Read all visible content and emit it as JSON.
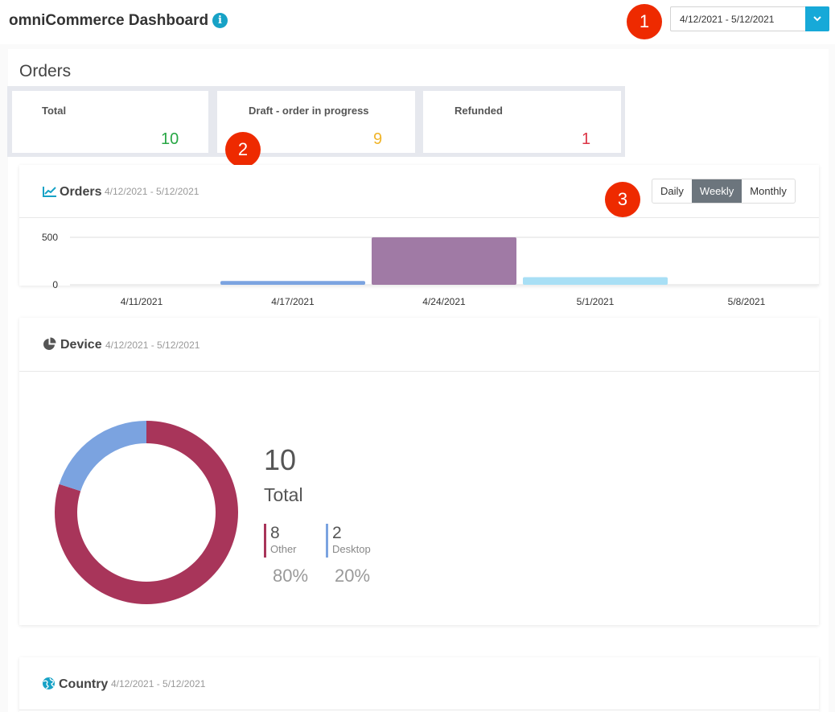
{
  "header": {
    "title": "omniCommerce Dashboard",
    "info_icon": "info-icon",
    "date_range": "4/12/2021 - 5/12/2021",
    "dropdown_icon": "chevron-down-icon"
  },
  "callouts": [
    "1",
    "2",
    "3"
  ],
  "orders": {
    "heading": "Orders",
    "stats": [
      {
        "label": "Total",
        "value": "10",
        "color": "#28a745"
      },
      {
        "label": "Draft - order in progress",
        "value": "9",
        "color": "#f0b429"
      },
      {
        "label": "Refunded",
        "value": "1",
        "color": "#dc3545"
      }
    ]
  },
  "orders_panel": {
    "title": "Orders",
    "date": "4/12/2021 - 5/12/2021",
    "icon": "line-chart-icon",
    "granularity": {
      "options": [
        "Daily",
        "Weekly",
        "Monthly"
      ],
      "selected": "Weekly"
    }
  },
  "chart_data": {
    "type": "bar",
    "categories": [
      "4/11/2021",
      "4/17/2021",
      "4/24/2021",
      "5/1/2021",
      "5/8/2021"
    ],
    "values": [
      0,
      40,
      500,
      80,
      0
    ],
    "colors": [
      "#7ba3e0",
      "#7ba3e0",
      "#a07aa5",
      "#a8dff5",
      "#7ba3e0"
    ],
    "ylim": [
      0,
      500
    ],
    "yticks": [
      "0",
      "500"
    ],
    "grid": true
  },
  "device_panel": {
    "title": "Device",
    "date": "4/12/2021 - 5/12/2021",
    "icon": "pie-chart-icon",
    "total": "10",
    "total_label": "Total",
    "items": [
      {
        "count": "8",
        "name": "Other",
        "percent": "80%",
        "fraction": 0.8,
        "color": "#a8355a"
      },
      {
        "count": "2",
        "name": "Desktop",
        "percent": "20%",
        "fraction": 0.2,
        "color": "#7ba3e0"
      }
    ]
  },
  "country_panel": {
    "title": "Country",
    "date": "4/12/2021 - 5/12/2021",
    "icon": "globe-icon"
  }
}
